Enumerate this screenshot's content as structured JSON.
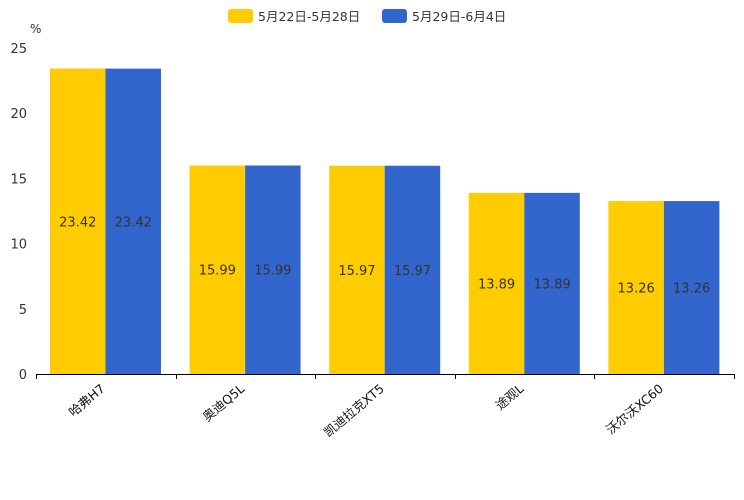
{
  "chart_data": {
    "type": "bar",
    "title": "",
    "ylabel": "%",
    "xlabel": "",
    "ylim": [
      0,
      25
    ],
    "yticks": [
      "0",
      "5",
      "10",
      "15",
      "20",
      "25"
    ],
    "categories": [
      "哈弗H7",
      "奥迪Q5L",
      "凯迪拉克XT5",
      "途观L",
      "沃尔沃XC60"
    ],
    "series": [
      {
        "name": "5月22日-5月28日",
        "color": "#FFCC00",
        "values": [
          23.42,
          15.99,
          15.97,
          13.89,
          13.26
        ],
        "labels": [
          "23.42",
          "15.99",
          "15.97",
          "13.89",
          "13.26"
        ]
      },
      {
        "name": "5月29日-6月4日",
        "color": "#3366CC",
        "values": [
          23.42,
          15.99,
          15.97,
          13.89,
          13.26
        ],
        "labels": [
          "23.42",
          "15.99",
          "15.97",
          "13.89",
          "13.26"
        ]
      }
    ],
    "legend": "top-center",
    "grid": false
  }
}
